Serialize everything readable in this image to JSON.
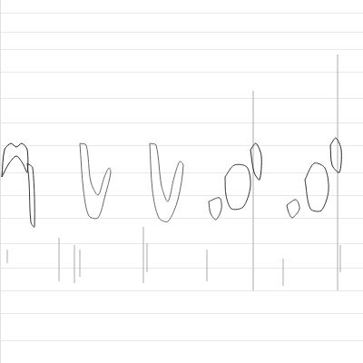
{
  "chart_data": {
    "type": "spectrogram",
    "xlim": [
      0,
      100
    ],
    "ylim": [
      0,
      100
    ],
    "yticks": [
      6.25,
      13.75,
      20,
      26.25,
      33,
      40,
      46.25,
      52.5,
      60,
      66.25,
      73,
      80,
      86.25,
      91.25,
      96.25
    ],
    "grid": true,
    "tick_labels": false,
    "syllables": [
      {
        "color": "#222222",
        "x": [
          0.5,
          1.25,
          3,
          4.5,
          6,
          7.5,
          7.5,
          6.25,
          4.5,
          2.5,
          0.5
        ],
        "y": [
          51.25,
          58.75,
          60.5,
          59.5,
          60.5,
          58.75,
          52.5,
          55,
          57,
          55,
          51.25
        ]
      },
      {
        "color": "#333333",
        "x": [
          7.5,
          9,
          9.5,
          8.5,
          8,
          7.5
        ],
        "y": [
          55,
          53.75,
          37.5,
          38.75,
          50,
          55
        ]
      },
      {
        "color": "#666666",
        "x": [
          22,
          23.75,
          25,
          27,
          28.75,
          30,
          30.5,
          29,
          27,
          24.5,
          23,
          22
        ],
        "y": [
          60.5,
          60,
          50,
          46.25,
          51.25,
          53.75,
          52.5,
          46.25,
          40,
          40.5,
          47.5,
          60.5
        ]
      },
      {
        "color": "#666666",
        "x": [
          41.25,
          43,
          44.5,
          46.25,
          48,
          49.5,
          50.5,
          49,
          46.25,
          43.75,
          42,
          41.25
        ],
        "y": [
          60.5,
          60,
          48.75,
          44.5,
          51.25,
          55.5,
          54.5,
          45,
          39,
          40,
          47.5,
          60.5
        ]
      },
      {
        "color": "#444444",
        "x": [
          57.5,
          60.5,
          61,
          59.5,
          58,
          57.5
        ],
        "y": [
          44.5,
          45.5,
          42.5,
          39.5,
          41.25,
          44.5
        ]
      },
      {
        "color": "#333333",
        "x": [
          62,
          64.5,
          68,
          69,
          67,
          63.75,
          62.25,
          62
        ],
        "y": [
          51.25,
          54.5,
          54,
          48.75,
          43,
          42.5,
          46.25,
          51.25
        ]
      },
      {
        "color": "#222222",
        "x": [
          69,
          70.5,
          72,
          71.5,
          70,
          69
        ],
        "y": [
          58.75,
          60.5,
          57,
          50.5,
          52.5,
          58.75
        ]
      },
      {
        "color": "#444444",
        "x": [
          79,
          81.5,
          82.5,
          80.5,
          79.5,
          79
        ],
        "y": [
          43.5,
          45,
          42.5,
          40,
          41.5,
          43.5
        ]
      },
      {
        "color": "#333333",
        "x": [
          84,
          86.5,
          89.5,
          90.5,
          88.5,
          85.5,
          84
        ],
        "y": [
          50.5,
          55,
          53.75,
          47.5,
          42,
          42.5,
          50.5
        ]
      },
      {
        "color": "#222222",
        "x": [
          91,
          92.5,
          94,
          93.5,
          91.5,
          91
        ],
        "y": [
          60,
          62,
          58.75,
          52.5,
          54.5,
          60
        ]
      }
    ],
    "noise": {
      "color": "#aaaaaa",
      "x": [
        2,
        16.25,
        20.5,
        22,
        39.5,
        40.5,
        57,
        69.75,
        78,
        93,
        93.75
      ],
      "y_low": [
        27.5,
        22.5,
        22,
        23.75,
        22,
        25,
        22.5,
        20,
        21.25,
        20,
        25
      ],
      "y_high": [
        31.25,
        34.5,
        32.5,
        31.25,
        37.5,
        33,
        31.25,
        75,
        28.75,
        85,
        32.5
      ]
    }
  }
}
